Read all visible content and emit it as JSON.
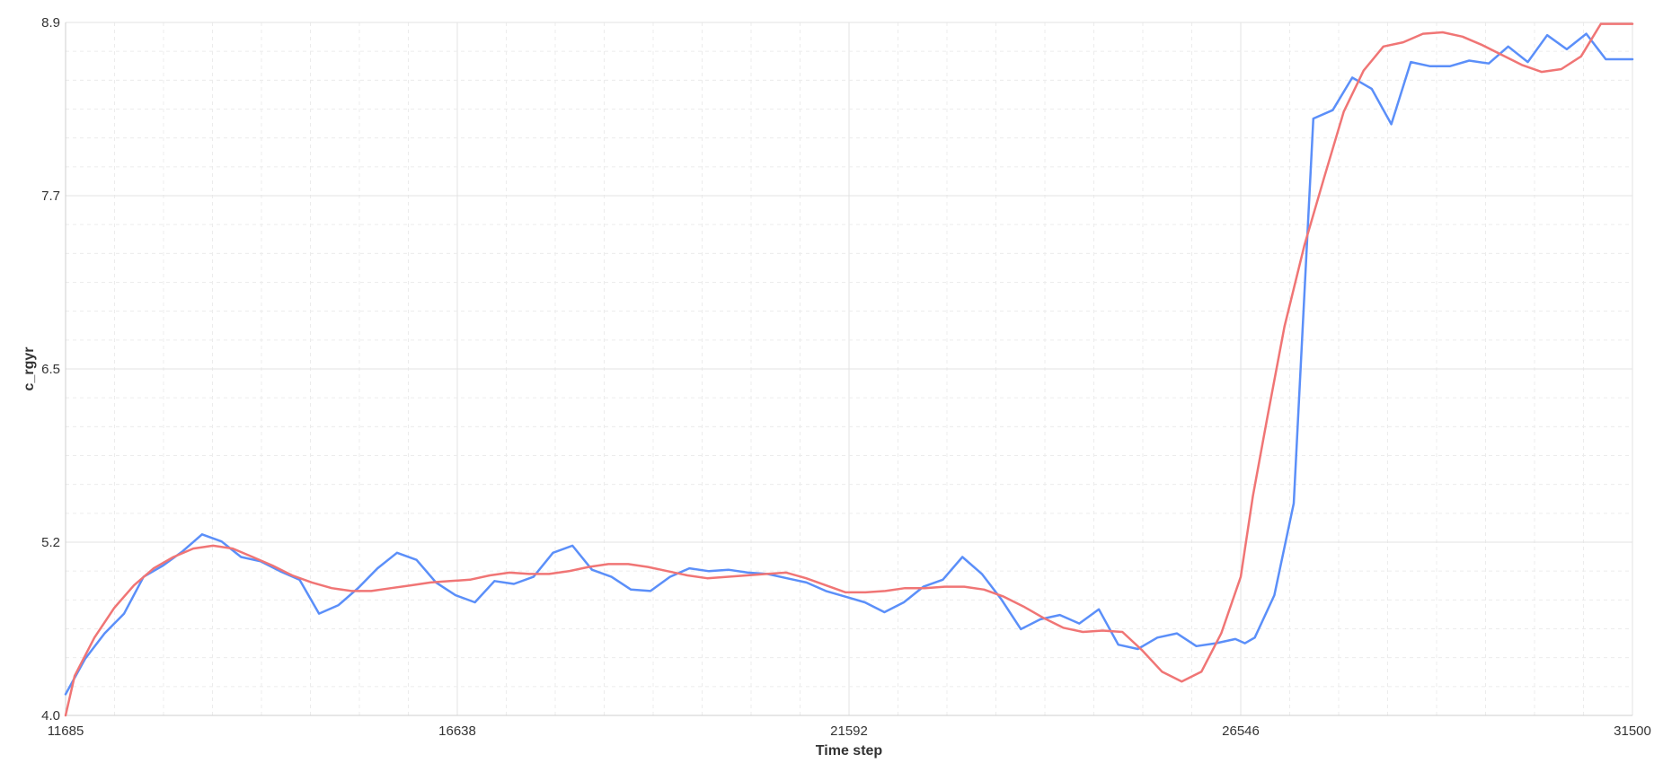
{
  "chart_data": {
    "type": "line",
    "xlabel": "Time step",
    "ylabel": "c_rgyr",
    "xlim": [
      11685,
      31500
    ],
    "ylim": [
      4.0,
      8.9
    ],
    "x_ticks": [
      "11685",
      "16638",
      "21592",
      "26546",
      "31500"
    ],
    "y_ticks": [
      "4.0",
      "5.2",
      "6.5",
      "7.7",
      "8.9"
    ],
    "grid": true,
    "series": [
      {
        "color": "#5b8ff9",
        "x": [
          11685,
          11932,
          12178,
          12425,
          12671,
          12918,
          13164,
          13411,
          13657,
          13904,
          14150,
          14397,
          14644,
          14890,
          15137,
          15383,
          15630,
          15876,
          16123,
          16369,
          16616,
          16862,
          17109,
          17355,
          17602,
          17849,
          18095,
          18342,
          18588,
          18835,
          19081,
          19328,
          19574,
          19821,
          20068,
          20314,
          20561,
          20807,
          21054,
          21300,
          21547,
          21793,
          22040,
          22286,
          22533,
          22779,
          23026,
          23273,
          23519,
          23766,
          24012,
          24259,
          24505,
          24752,
          24998,
          25245,
          25492,
          25738,
          25985,
          26231,
          26478,
          26600,
          26724,
          26971,
          27217,
          27464,
          27710,
          27957,
          28203,
          28450,
          28697,
          28943,
          29190,
          29436,
          29683,
          29929,
          30176,
          30422,
          30669,
          30916,
          31162,
          31409,
          31500
        ],
        "y": [
          4.15,
          4.4,
          4.58,
          4.72,
          4.98,
          5.06,
          5.16,
          5.28,
          5.23,
          5.12,
          5.09,
          5.02,
          4.96,
          4.72,
          4.78,
          4.9,
          5.04,
          5.15,
          5.1,
          4.94,
          4.85,
          4.8,
          4.95,
          4.93,
          4.98,
          5.15,
          5.2,
          5.03,
          4.98,
          4.89,
          4.88,
          4.98,
          5.04,
          5.02,
          5.03,
          5.01,
          5.0,
          4.97,
          4.94,
          4.88,
          4.84,
          4.8,
          4.73,
          4.8,
          4.91,
          4.96,
          5.12,
          5.0,
          4.82,
          4.61,
          4.68,
          4.71,
          4.65,
          4.75,
          4.5,
          4.47,
          4.55,
          4.58,
          4.49,
          4.51,
          4.54,
          4.51,
          4.55,
          4.85,
          5.5,
          8.22,
          8.28,
          8.51,
          8.43,
          8.18,
          8.62,
          8.59,
          8.59,
          8.63,
          8.61,
          8.73,
          8.62,
          8.81,
          8.71,
          8.82,
          8.64,
          8.64,
          8.64
        ]
      },
      {
        "color": "#f07575",
        "x": [
          11685,
          11800,
          12050,
          12300,
          12550,
          12800,
          13050,
          13300,
          13550,
          13800,
          14050,
          14300,
          14550,
          14800,
          15050,
          15300,
          15550,
          15800,
          16050,
          16300,
          16550,
          16800,
          17050,
          17300,
          17550,
          17800,
          18050,
          18300,
          18550,
          18800,
          19050,
          19300,
          19550,
          19800,
          20050,
          20300,
          20550,
          20800,
          21050,
          21300,
          21550,
          21800,
          22050,
          22300,
          22550,
          22800,
          23050,
          23300,
          23550,
          23800,
          24050,
          24300,
          24550,
          24800,
          25050,
          25300,
          25550,
          25800,
          26050,
          26300,
          26546,
          26700,
          26880,
          27100,
          27350,
          27600,
          27850,
          28100,
          28350,
          28600,
          28850,
          29100,
          29350,
          29600,
          29850,
          30100,
          30350,
          30600,
          30850,
          31100,
          31350,
          31500
        ],
        "y": [
          4.0,
          4.28,
          4.55,
          4.76,
          4.92,
          5.04,
          5.12,
          5.18,
          5.2,
          5.18,
          5.12,
          5.06,
          4.99,
          4.94,
          4.9,
          4.88,
          4.88,
          4.9,
          4.92,
          4.94,
          4.95,
          4.96,
          4.99,
          5.01,
          5.0,
          5.0,
          5.02,
          5.05,
          5.07,
          5.07,
          5.05,
          5.02,
          4.99,
          4.97,
          4.98,
          4.99,
          5.0,
          5.01,
          4.97,
          4.92,
          4.87,
          4.87,
          4.88,
          4.9,
          4.9,
          4.91,
          4.91,
          4.89,
          4.84,
          4.77,
          4.69,
          4.62,
          4.59,
          4.6,
          4.59,
          4.46,
          4.31,
          4.24,
          4.31,
          4.58,
          4.98,
          5.55,
          6.1,
          6.75,
          7.32,
          7.8,
          8.27,
          8.56,
          8.73,
          8.76,
          8.82,
          8.83,
          8.8,
          8.74,
          8.67,
          8.6,
          8.55,
          8.57,
          8.66,
          8.89,
          8.89,
          8.89
        ]
      }
    ]
  }
}
